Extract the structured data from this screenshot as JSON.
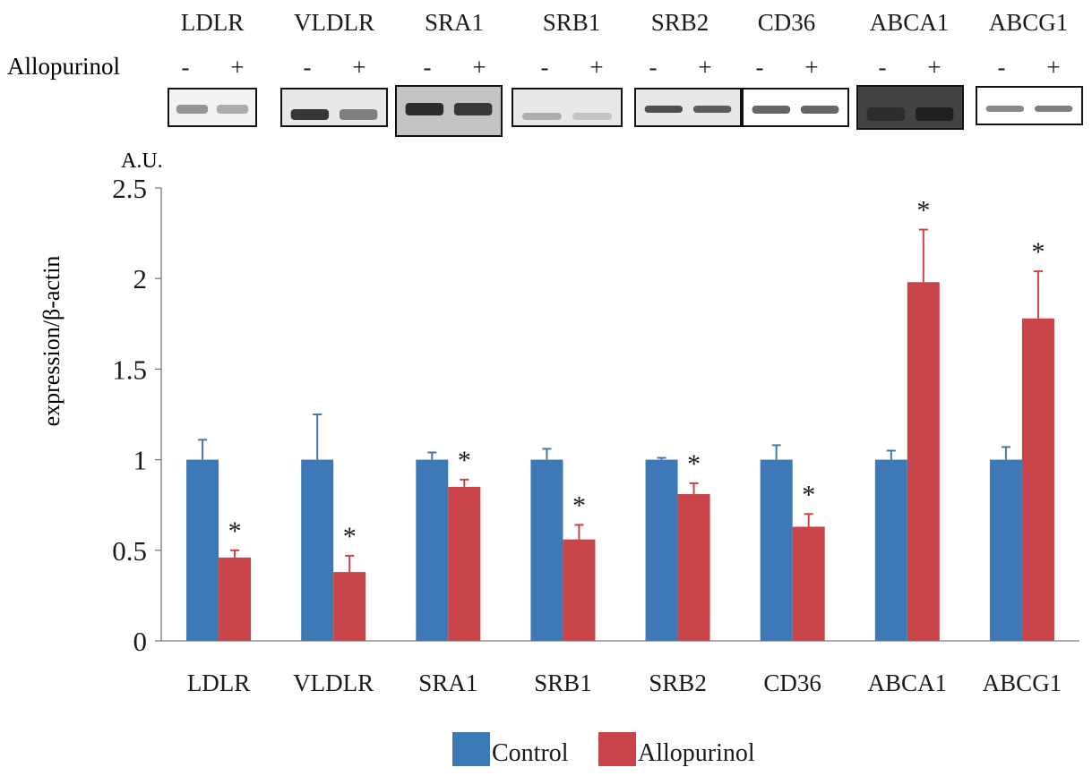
{
  "blot": {
    "treatment_label": "Allopurinol",
    "minus": "-",
    "plus": "+",
    "proteins": [
      "LDLR",
      "VLDLR",
      "SRA1",
      "SRB1",
      "SRB2",
      "CD36",
      "ABCA1",
      "ABCG1"
    ],
    "band_intensity": {
      "control": [
        0.45,
        0.85,
        0.9,
        0.35,
        0.75,
        0.65,
        0.9,
        0.5
      ],
      "allopurinol": [
        0.35,
        0.55,
        0.85,
        0.25,
        0.7,
        0.65,
        0.95,
        0.55
      ]
    },
    "background_darkness": [
      0.05,
      0.1,
      0.25,
      0.1,
      0.1,
      0.0,
      0.8,
      0.0
    ]
  },
  "chart_data": {
    "type": "bar",
    "unit_label": "A.U.",
    "ylabel": "expression/β-actin",
    "xlabel": "",
    "title": "",
    "ylim": [
      0,
      2.5
    ],
    "yticks": [
      0,
      0.5,
      1,
      1.5,
      2,
      2.5
    ],
    "ytick_labels": [
      "0",
      "0.5",
      "1",
      "1.5",
      "2",
      "2.5"
    ],
    "grid": false,
    "legend_position": "bottom-center",
    "categories": [
      "LDLR",
      "VLDLR",
      "SRA1",
      "SRB1",
      "SRB2",
      "CD36",
      "ABCA1",
      "ABCG1"
    ],
    "series": [
      {
        "name": "Control",
        "color": "#3d79b6",
        "values": [
          1,
          1,
          1,
          1,
          1,
          1,
          1,
          1
        ],
        "errors": [
          0.11,
          0.25,
          0.04,
          0.06,
          0.01,
          0.08,
          0.05,
          0.07
        ]
      },
      {
        "name": "Allopurinol",
        "color": "#c94448",
        "values": [
          0.46,
          0.38,
          0.85,
          0.56,
          0.81,
          0.63,
          1.98,
          1.78
        ],
        "errors": [
          0.04,
          0.09,
          0.04,
          0.08,
          0.06,
          0.07,
          0.29,
          0.26
        ]
      }
    ],
    "significance_marker": "*",
    "significant": [
      true,
      true,
      true,
      true,
      true,
      true,
      true,
      true
    ]
  }
}
